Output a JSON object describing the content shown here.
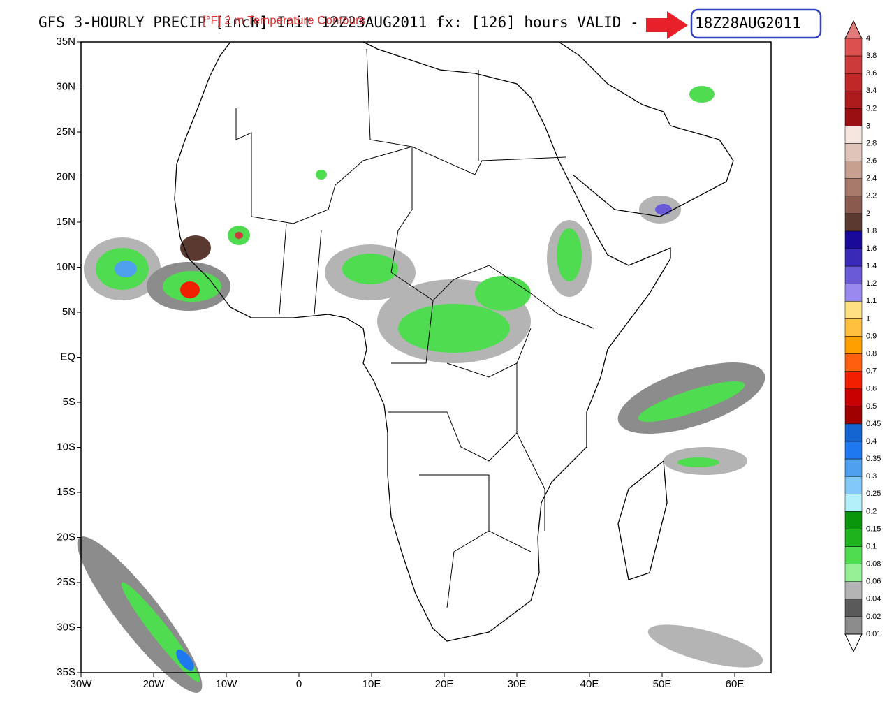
{
  "title": "GFS 3-HOURLY PRECIP [inch] Init 12Z23AUG2011 fx: [126] hours VALID -",
  "overlay_text": "[°F] 2 m Temperature Contours",
  "valid_time": "18Z28AUG2011",
  "lat_ticks": [
    "35N",
    "30N",
    "25N",
    "20N",
    "15N",
    "10N",
    "5N",
    "EQ",
    "5S",
    "10S",
    "15S",
    "20S",
    "25S",
    "30S",
    "35S"
  ],
  "lon_ticks": [
    "30W",
    "20W",
    "10W",
    "0",
    "10E",
    "20E",
    "30E",
    "40E",
    "50E",
    "60E"
  ],
  "colorbar": {
    "top_color": "#e07b7b",
    "levels": [
      {
        "label": "4",
        "color": "#dc5050"
      },
      {
        "label": "3.8",
        "color": "#cc3a3a"
      },
      {
        "label": "3.6",
        "color": "#c02828"
      },
      {
        "label": "3.4",
        "color": "#ac1c1c"
      },
      {
        "label": "3.2",
        "color": "#9a1010"
      },
      {
        "label": "3",
        "color": "#f5e6e0"
      },
      {
        "label": "2.8",
        "color": "#e0c4ba"
      },
      {
        "label": "2.6",
        "color": "#c8a090"
      },
      {
        "label": "2.4",
        "color": "#a87a6c"
      },
      {
        "label": "2.2",
        "color": "#8a5a4e"
      },
      {
        "label": "2",
        "color": "#5a3a30"
      },
      {
        "label": "1.8",
        "color": "#1a0a9a"
      },
      {
        "label": "1.6",
        "color": "#3a2ab8"
      },
      {
        "label": "1.4",
        "color": "#6a5ad8"
      },
      {
        "label": "1.2",
        "color": "#9a8af0"
      },
      {
        "label": "1.1",
        "color": "#ffe080"
      },
      {
        "label": "1",
        "color": "#ffc040"
      },
      {
        "label": "0.9",
        "color": "#ffa000"
      },
      {
        "label": "0.8",
        "color": "#ff6010"
      },
      {
        "label": "0.7",
        "color": "#f02000"
      },
      {
        "label": "0.6",
        "color": "#c80000"
      },
      {
        "label": "0.5",
        "color": "#a00000"
      },
      {
        "label": "0.45",
        "color": "#1464d2"
      },
      {
        "label": "0.4",
        "color": "#1e78f0"
      },
      {
        "label": "0.35",
        "color": "#50a0f0"
      },
      {
        "label": "0.3",
        "color": "#82c8f8"
      },
      {
        "label": "0.25",
        "color": "#b4f0fa"
      },
      {
        "label": "0.2",
        "color": "#0a960a"
      },
      {
        "label": "0.15",
        "color": "#1eb41e"
      },
      {
        "label": "0.1",
        "color": "#50dc50"
      },
      {
        "label": "0.08",
        "color": "#96f096"
      },
      {
        "label": "0.06",
        "color": "#b4b4b4"
      },
      {
        "label": "0.04",
        "color": "#5a5a5a"
      },
      {
        "label": "0.02",
        "color": "#8c8c8c"
      },
      {
        "label": "0.01",
        "color": "#ffffff"
      }
    ]
  }
}
